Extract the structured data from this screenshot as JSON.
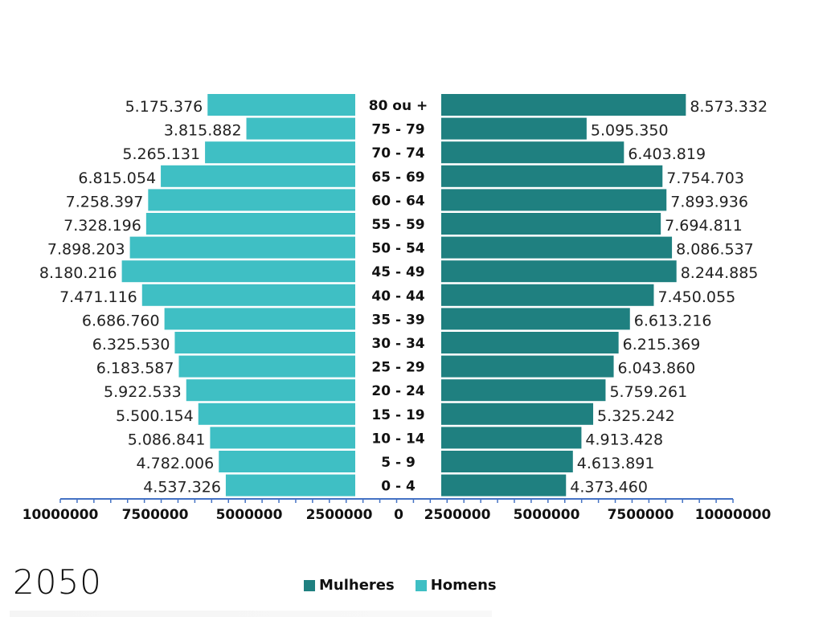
{
  "year_label": "2050",
  "colors": {
    "homens": "#3fbfc4",
    "mulheres": "#1f8080",
    "axis": "#4472c4"
  },
  "legend": [
    {
      "label": "Mulheres",
      "color": "#1f8080"
    },
    {
      "label": "Homens",
      "color": "#3fbfc4"
    }
  ],
  "chart_data": {
    "type": "bar",
    "subtype": "population-pyramid",
    "title": "",
    "year": "2050",
    "categories": [
      "80 ou +",
      "75 - 79",
      "70 - 74",
      "65 - 69",
      "60 - 64",
      "55 - 59",
      "50 - 54",
      "45 - 49",
      "40 - 44",
      "35 - 39",
      "30 - 34",
      "25 - 29",
      "20 - 24",
      "15 - 19",
      "10 - 14",
      "5 - 9",
      "0 - 4"
    ],
    "series": [
      {
        "name": "Homens",
        "side": "left",
        "color": "#3fbfc4",
        "values": [
          5175376,
          3815882,
          5265131,
          6815054,
          7258397,
          7328196,
          7898203,
          8180216,
          7471116,
          6686760,
          6325530,
          6183587,
          5922533,
          5500154,
          5086841,
          4782006,
          4537326
        ],
        "labels": [
          "5.175.376",
          "3.815.882",
          "5.265.131",
          "6.815.054",
          "7.258.397",
          "7.328.196",
          "7.898.203",
          "8.180.216",
          "7.471.116",
          "6.686.760",
          "6.325.530",
          "6.183.587",
          "5.922.533",
          "5.500.154",
          "5.086.841",
          "4.782.006",
          "4.537.326"
        ]
      },
      {
        "name": "Mulheres",
        "side": "right",
        "color": "#1f8080",
        "values": [
          8573332,
          5095350,
          6403819,
          7754703,
          7893936,
          7694811,
          8086537,
          8244885,
          7450055,
          6613216,
          6215369,
          6043860,
          5759261,
          5325242,
          4913428,
          4613891,
          4373460
        ],
        "labels": [
          "8.573.332",
          "5.095.350",
          "6.403.819",
          "7.754.703",
          "7.893.936",
          "7.694.811",
          "8.086.537",
          "8.244.885",
          "7.450.055",
          "6.613.216",
          "6.215.369",
          "6.043.860",
          "5.759.261",
          "5.325.242",
          "4.913.428",
          "4.613.891",
          "4.373.460"
        ]
      }
    ],
    "xaxis_ticks": [
      "10000000",
      "7500000",
      "5000000",
      "2500000",
      "0",
      "2500000",
      "5000000",
      "7500000",
      "10000000"
    ],
    "xlim": [
      0,
      10000000
    ],
    "xlabel": "",
    "ylabel": "",
    "grid": false,
    "legend_position": "bottom-center"
  }
}
